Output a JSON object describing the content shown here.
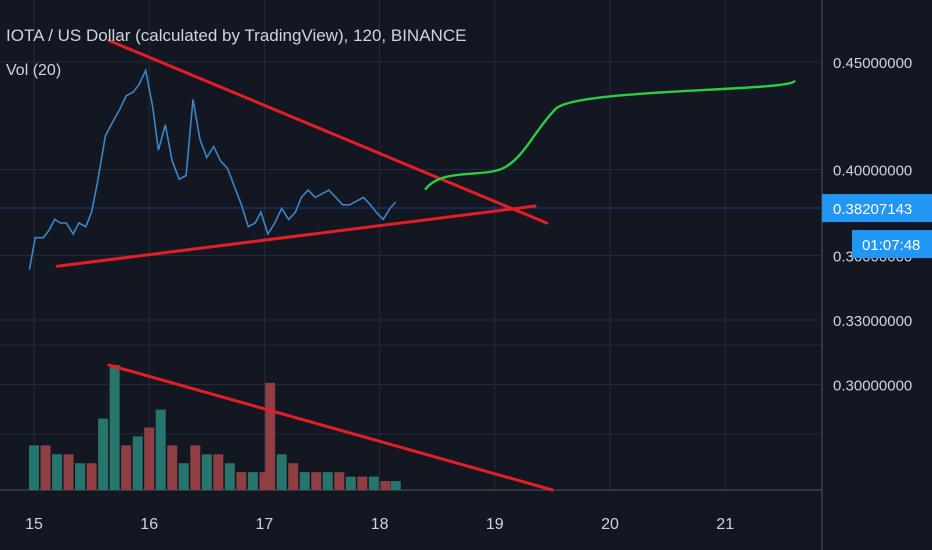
{
  "header": {
    "title": "IOTA / US Dollar (calculated by TradingView), 120, BINANCE",
    "volume_label": "Vol (20)"
  },
  "price_scale": {
    "ticks": [
      "0.45000000",
      "0.40000000",
      "0.36000000",
      "0.33000000",
      "0.30000000"
    ],
    "current_price_label": "0.38207143",
    "countdown_label": "01:07:48"
  },
  "time_scale": {
    "ticks": [
      "15",
      "16",
      "17",
      "18",
      "19",
      "20",
      "21"
    ]
  },
  "colors": {
    "background": "#131722",
    "grid": "#252a37",
    "axis_text": "#d1d4dc",
    "price_line": "#3d85c6",
    "trendline": "#e31e24",
    "projection": "#2ecc40",
    "volume_up": "#26766e",
    "volume_down": "#8f3f44",
    "price_tag_bg": "#2196f3"
  },
  "chart_data": {
    "type": "line",
    "symbol": "IOTA / US Dollar",
    "interval": "120",
    "exchange": "BINANCE",
    "x_axis": {
      "ticks": [
        "15",
        "16",
        "17",
        "18",
        "19",
        "20",
        "21"
      ],
      "range": [
        14.95,
        21.9
      ]
    },
    "y_axis": {
      "range": [
        0.285,
        0.462
      ],
      "ticks_shown": [
        "0.45000000",
        "0.40000000",
        "0.36000000",
        "0.33000000",
        "0.30000000"
      ]
    },
    "grid": true,
    "current_price": 0.38207143,
    "series": [
      {
        "values": [
          [
            14.96,
            0.3534
          ],
          [
            15.01,
            0.3683
          ],
          [
            15.08,
            0.3683
          ],
          [
            15.13,
            0.3717
          ],
          [
            15.18,
            0.3768
          ],
          [
            15.23,
            0.3751
          ],
          [
            15.28,
            0.3751
          ],
          [
            15.34,
            0.37
          ],
          [
            15.39,
            0.3751
          ],
          [
            15.45,
            0.3734
          ],
          [
            15.5,
            0.3802
          ],
          [
            15.55,
            0.3938
          ],
          [
            15.62,
            0.4157
          ],
          [
            15.67,
            0.4208
          ],
          [
            15.74,
            0.4275
          ],
          [
            15.8,
            0.4343
          ],
          [
            15.86,
            0.436
          ],
          [
            15.91,
            0.4393
          ],
          [
            15.97,
            0.4461
          ],
          [
            16.03,
            0.4292
          ],
          [
            16.08,
            0.409
          ],
          [
            16.14,
            0.4208
          ],
          [
            16.2,
            0.4039
          ],
          [
            16.26,
            0.3955
          ],
          [
            16.32,
            0.3972
          ],
          [
            16.38,
            0.4326
          ],
          [
            16.44,
            0.4141
          ],
          [
            16.5,
            0.4056
          ],
          [
            16.56,
            0.4107
          ],
          [
            16.62,
            0.4039
          ],
          [
            16.68,
            0.4005
          ],
          [
            16.74,
            0.3921
          ],
          [
            16.8,
            0.3836
          ],
          [
            16.86,
            0.3734
          ],
          [
            16.92,
            0.3751
          ],
          [
            16.97,
            0.3802
          ],
          [
            17.03,
            0.37
          ],
          [
            17.09,
            0.3751
          ],
          [
            17.15,
            0.3819
          ],
          [
            17.21,
            0.3768
          ],
          [
            17.27,
            0.3802
          ],
          [
            17.32,
            0.387
          ],
          [
            17.38,
            0.3904
          ],
          [
            17.44,
            0.387
          ],
          [
            17.5,
            0.3887
          ],
          [
            17.56,
            0.3904
          ],
          [
            17.62,
            0.387
          ],
          [
            17.68,
            0.3836
          ],
          [
            17.74,
            0.3836
          ],
          [
            17.8,
            0.3853
          ],
          [
            17.86,
            0.387
          ],
          [
            17.92,
            0.3836
          ],
          [
            17.97,
            0.3802
          ],
          [
            18.03,
            0.3768
          ],
          [
            18.09,
            0.3819
          ],
          [
            18.14,
            0.3849
          ]
        ]
      }
    ],
    "volume": [
      {
        "x": 15.0,
        "v": 0.5,
        "up": true
      },
      {
        "x": 15.1,
        "v": 0.5,
        "up": false
      },
      {
        "x": 15.2,
        "v": 0.4,
        "up": true
      },
      {
        "x": 15.3,
        "v": 0.4,
        "up": false
      },
      {
        "x": 15.4,
        "v": 0.3,
        "up": true
      },
      {
        "x": 15.5,
        "v": 0.3,
        "up": false
      },
      {
        "x": 15.6,
        "v": 0.8,
        "up": true
      },
      {
        "x": 15.7,
        "v": 1.4,
        "up": true
      },
      {
        "x": 15.8,
        "v": 0.5,
        "up": false
      },
      {
        "x": 15.9,
        "v": 0.6,
        "up": true
      },
      {
        "x": 16.0,
        "v": 0.7,
        "up": false
      },
      {
        "x": 16.1,
        "v": 0.9,
        "up": true
      },
      {
        "x": 16.2,
        "v": 0.5,
        "up": false
      },
      {
        "x": 16.3,
        "v": 0.3,
        "up": true
      },
      {
        "x": 16.4,
        "v": 0.5,
        "up": false
      },
      {
        "x": 16.5,
        "v": 0.4,
        "up": true
      },
      {
        "x": 16.6,
        "v": 0.4,
        "up": false
      },
      {
        "x": 16.7,
        "v": 0.3,
        "up": true
      },
      {
        "x": 16.8,
        "v": 0.2,
        "up": false
      },
      {
        "x": 16.9,
        "v": 0.2,
        "up": true
      },
      {
        "x": 17.0,
        "v": 0.2,
        "up": false
      },
      {
        "x": 17.05,
        "v": 1.2,
        "up": false
      },
      {
        "x": 17.15,
        "v": 0.4,
        "up": true
      },
      {
        "x": 17.25,
        "v": 0.3,
        "up": false
      },
      {
        "x": 17.35,
        "v": 0.2,
        "up": true
      },
      {
        "x": 17.45,
        "v": 0.2,
        "up": false
      },
      {
        "x": 17.55,
        "v": 0.2,
        "up": true
      },
      {
        "x": 17.65,
        "v": 0.2,
        "up": false
      },
      {
        "x": 17.75,
        "v": 0.15,
        "up": true
      },
      {
        "x": 17.85,
        "v": 0.15,
        "up": false
      },
      {
        "x": 17.95,
        "v": 0.15,
        "up": true
      },
      {
        "x": 18.05,
        "v": 0.1,
        "up": false
      },
      {
        "x": 18.14,
        "v": 0.1,
        "up": true
      }
    ],
    "annotations": [
      {
        "type": "trendline",
        "color": "#e31e24",
        "from": [
          15.65,
          0.46
        ],
        "to": [
          19.45,
          0.3751
        ],
        "meaning": "descending resistance"
      },
      {
        "type": "trendline",
        "color": "#e31e24",
        "from": [
          15.2,
          0.355
        ],
        "to": [
          19.35,
          0.383
        ],
        "meaning": "ascending support"
      },
      {
        "type": "trendline",
        "color": "#e31e24",
        "from": [
          15.65,
          1.4
        ],
        "to": [
          19.5,
          0.0
        ],
        "meaning": "volume decline (volume pane)"
      },
      {
        "type": "projection",
        "color": "#2ecc40",
        "from": [
          18.4,
          0.391
        ],
        "to": [
          21.6,
          0.441
        ],
        "meaning": "hand-drawn forecast"
      }
    ]
  }
}
